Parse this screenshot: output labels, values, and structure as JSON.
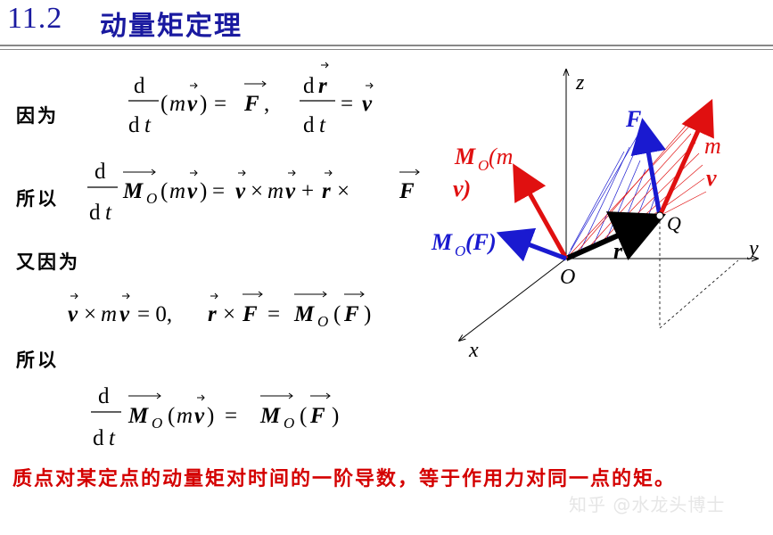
{
  "header": {
    "section_number": "11.2",
    "section_title": "动量矩定理"
  },
  "labels": {
    "because": "因为",
    "therefore_1": "所以",
    "also_because": "又因为",
    "therefore_2": "所以"
  },
  "diagram": {
    "axis_z": "z",
    "axis_y": "y",
    "axis_x": "x",
    "origin": "O",
    "point_q": "Q",
    "vector_r": "r",
    "vector_f": "F",
    "momentum_m": "m",
    "momentum_v": "v",
    "mo_mv_line1": "M",
    "mo_mv_sub": "O",
    "mo_mv_rest": "(m",
    "mo_mv_line2": "v)",
    "mo_f_m": "M",
    "mo_f_sub": "O",
    "mo_f_rest": "(F)",
    "colors": {
      "blue": "#1a1ad0",
      "red": "#e01010",
      "black": "#000000"
    }
  },
  "conclusion": "质点对某定点的动量矩对时间的一阶导数，等于作用力对同一点的矩。",
  "watermark": "知乎 @水龙头博士"
}
